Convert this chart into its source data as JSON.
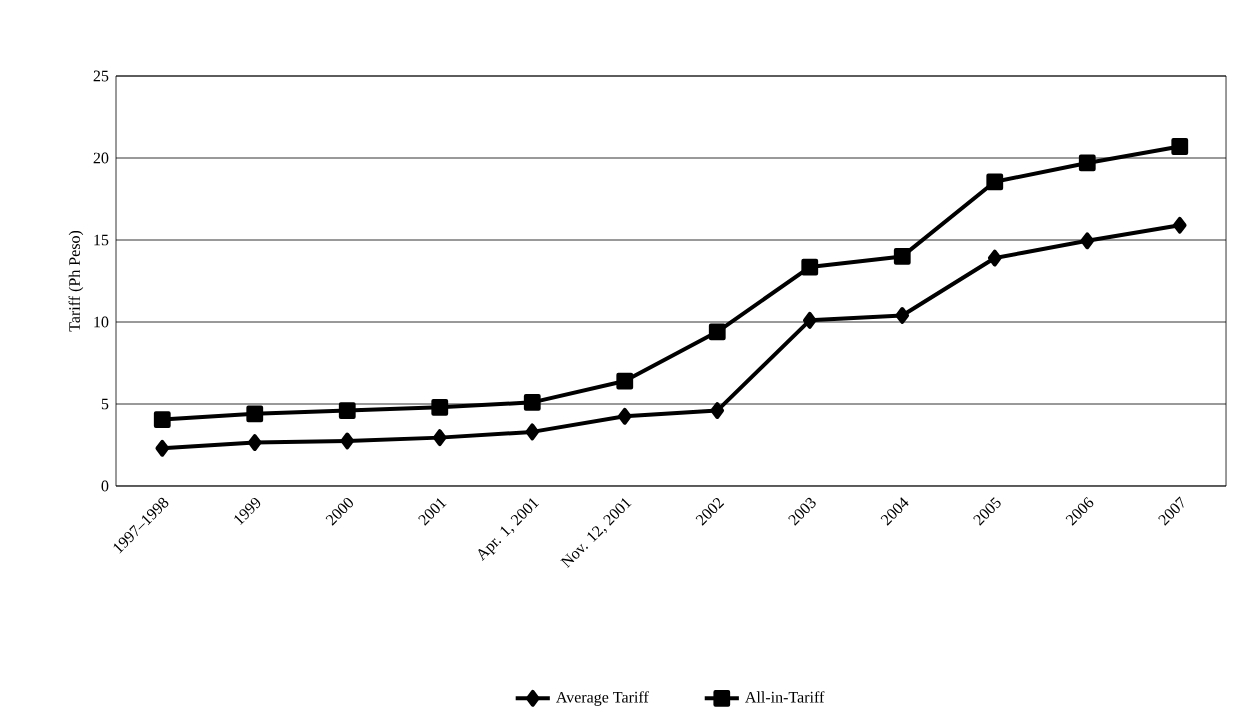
{
  "chart_data": {
    "type": "line",
    "ylabel": "Tariff (Ph Peso)",
    "categories": [
      "1997–1998",
      "1999",
      "2000",
      "2001",
      "Apr. 1, 2001",
      "Nov. 12, 2001",
      "2002",
      "2003",
      "2004",
      "2005",
      "2006",
      "2007"
    ],
    "series": [
      {
        "name": "Average Tariff",
        "color": "#000000",
        "marker": "diamond",
        "values": [
          2.3,
          2.65,
          2.75,
          2.95,
          3.3,
          4.25,
          4.6,
          10.1,
          10.4,
          13.9,
          14.95,
          15.9
        ]
      },
      {
        "name": "All-in-Tariff",
        "color": "#000000",
        "marker": "square",
        "values": [
          4.05,
          4.4,
          4.6,
          4.8,
          5.1,
          6.4,
          9.4,
          13.35,
          14.0,
          18.55,
          19.7,
          20.7
        ]
      }
    ],
    "ylim": [
      0,
      25
    ],
    "yticks": [
      0,
      5,
      10,
      15,
      20,
      25
    ],
    "grid": "y",
    "legend": "bottom",
    "line_style": "solid"
  }
}
